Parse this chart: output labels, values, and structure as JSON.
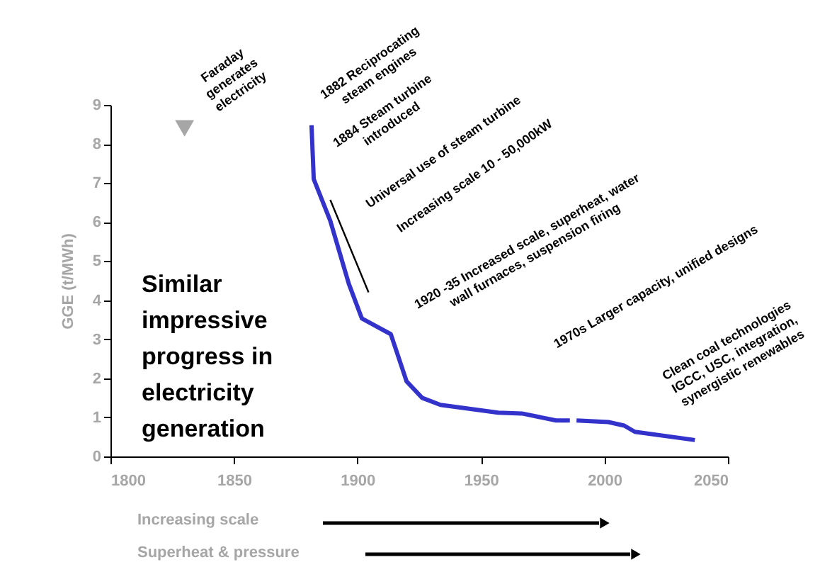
{
  "chart_data": {
    "type": "line",
    "ylabel": "GGE (t/MWh)",
    "xlim": [
      1800,
      2050
    ],
    "xticks": [
      1800,
      1850,
      1900,
      1950,
      2000,
      2050
    ],
    "ylim": [
      0,
      9
    ],
    "yticks": [
      0,
      1,
      2,
      3,
      4,
      5,
      6,
      7,
      8,
      9
    ],
    "grid": false,
    "series": [
      {
        "color": "#3333cc",
        "x": [
          1881.4,
          1882.3,
          1889,
          1896.5,
          1901.8,
          1913.5,
          1919.9,
          1926.2,
          1933.6,
          1957,
          1966.6,
          1980.4,
          1986,
          1987.3,
          1988.7,
          2001.6,
          2008,
          2012.3,
          2036.6
        ],
        "values": [
          8.48,
          7.1,
          6.03,
          4.42,
          3.53,
          3.13,
          1.92,
          1.5,
          1.32,
          1.12,
          1.1,
          0.92,
          0.92,
          null,
          0.92,
          0.88,
          0.79,
          0.63,
          0.42
        ]
      },
      {
        "type": "scatter",
        "color": "#a6a6a6",
        "marker": "triangle",
        "x": [
          1830
        ],
        "values": [
          8.4
        ]
      },
      {
        "type": "line",
        "color": "#000000",
        "x": [
          1889,
          1904.5
        ],
        "values": [
          6.57,
          4.2
        ]
      }
    ],
    "annotations": [
      "Faraday\ngenerates\nelectricity",
      "1882 Reciprocating\nsteam engines",
      "1884 Steam turbine\nintroduced",
      "Universal use of steam turbine",
      "Increasing scale 10      - 50,000kW",
      "1920 -35 Increased scale, superheat, water\nwall furnaces, suspension firing",
      "1970s Larger capacity, unified designs",
      "Clean coal technologies\nIGCC, USC, integration,\nsynergistic renewables",
      "Similar\nimpressive\nprogress in\nelectricity\ngeneration",
      "Increasing scale",
      "Superheat & pressure"
    ]
  }
}
